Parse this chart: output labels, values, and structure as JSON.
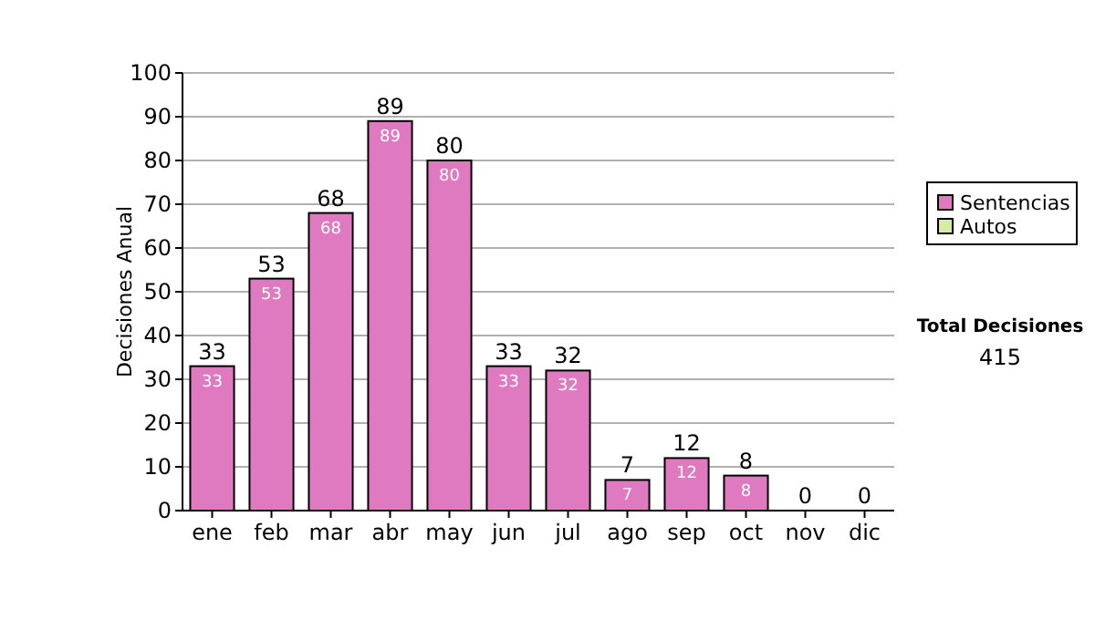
{
  "chart_data": {
    "type": "bar",
    "stacked": true,
    "ylabel": "Decisiones Anual",
    "categories": [
      "ene",
      "feb",
      "mar",
      "abr",
      "may",
      "jun",
      "jul",
      "ago",
      "sep",
      "oct",
      "nov",
      "dic"
    ],
    "series": [
      {
        "name": "Sentencias",
        "color": "#e07ac0",
        "values": [
          33,
          53,
          68,
          89,
          80,
          33,
          32,
          7,
          12,
          8,
          0,
          0
        ],
        "value_labels": [
          "33",
          "53",
          "68",
          "89",
          "80",
          "33",
          "32",
          "7",
          "12",
          "8",
          null,
          null
        ]
      },
      {
        "name": "Autos",
        "color": "#d8eca0",
        "values": [
          0,
          0,
          0,
          0,
          0,
          0,
          0,
          0,
          0,
          0,
          0,
          0
        ]
      }
    ],
    "totals": [
      "33",
      "53",
      "68",
      "89",
      "80",
      "33",
      "32",
      "7",
      "12",
      "8",
      "0",
      "0"
    ],
    "ylim": [
      0,
      100
    ],
    "yticks": [
      0,
      10,
      20,
      30,
      40,
      50,
      60,
      70,
      80,
      90,
      100
    ],
    "grid": "y",
    "legend": "right",
    "annotations": [
      "Total Decisiones",
      "415"
    ]
  }
}
